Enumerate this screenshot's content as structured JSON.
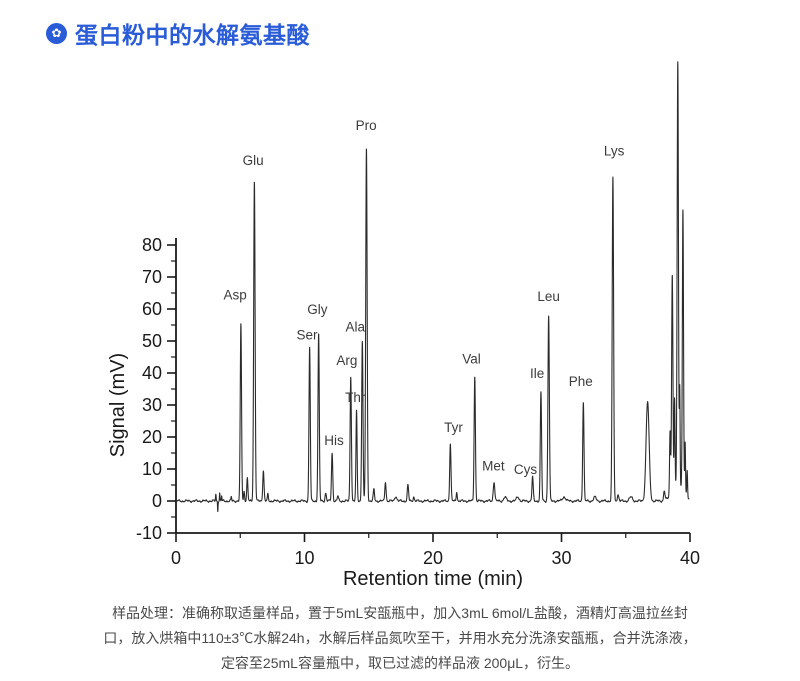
{
  "header": {
    "title": "蛋白粉中的水解氨基酸",
    "icon": "flower-badge",
    "icon_glyph": "✿",
    "accent_color": "#2A5CD8"
  },
  "chart_data": {
    "type": "line",
    "title": "",
    "xlabel": "Retention time (min)",
    "ylabel": "Signal (mV)",
    "xlim": [
      0,
      40
    ],
    "ylim": [
      -10,
      80
    ],
    "x_major_ticks": [
      0,
      10,
      20,
      30,
      40
    ],
    "x_minor_ticks": [
      5,
      15,
      25,
      35
    ],
    "y_major_ticks": [
      -10,
      0,
      10,
      20,
      30,
      40,
      50,
      60,
      70,
      80
    ],
    "y_minor_ticks": [
      -5,
      5,
      15,
      25,
      35,
      45,
      55,
      65,
      75
    ],
    "grid": false,
    "legend": "none",
    "line_color": "#2b2b2b",
    "axis_color": "#1a1a1a",
    "baseline_mv": 0,
    "peaks": [
      {
        "t": 3.1,
        "mv": 2.0,
        "w": 0.025,
        "label": ""
      },
      {
        "t": 3.25,
        "mv": -3.0,
        "w": 0.018,
        "label": ""
      },
      {
        "t": 3.4,
        "mv": 2.6,
        "w": 0.02,
        "label": ""
      },
      {
        "t": 3.55,
        "mv": 1.6,
        "w": 0.02,
        "label": ""
      },
      {
        "t": 4.3,
        "mv": 1.2,
        "w": 0.03,
        "label": ""
      },
      {
        "t": 5.05,
        "mv": 55,
        "w": 0.05,
        "label": "Asp"
      },
      {
        "t": 5.3,
        "mv": 3,
        "w": 0.04,
        "label": ""
      },
      {
        "t": 5.55,
        "mv": 7,
        "w": 0.045,
        "label": ""
      },
      {
        "t": 6.1,
        "mv": 100,
        "w": 0.055,
        "label": "Glu"
      },
      {
        "t": 6.8,
        "mv": 9.5,
        "w": 0.05,
        "label": ""
      },
      {
        "t": 7.15,
        "mv": 2,
        "w": 0.04,
        "label": ""
      },
      {
        "t": 10.4,
        "mv": 48,
        "w": 0.05,
        "label": "Ser"
      },
      {
        "t": 11.1,
        "mv": 52,
        "w": 0.05,
        "label": "Gly"
      },
      {
        "t": 11.65,
        "mv": 2.5,
        "w": 0.05,
        "label": ""
      },
      {
        "t": 12.15,
        "mv": 15,
        "w": 0.05,
        "label": "His"
      },
      {
        "t": 12.6,
        "mv": 1.5,
        "w": 0.05,
        "label": ""
      },
      {
        "t": 13.6,
        "mv": 39,
        "w": 0.05,
        "label": "Arg"
      },
      {
        "t": 14.05,
        "mv": 28,
        "w": 0.045,
        "label": "Thr"
      },
      {
        "t": 14.5,
        "mv": 50,
        "w": 0.05,
        "label": "Ala"
      },
      {
        "t": 14.82,
        "mv": 110,
        "w": 0.055,
        "label": "Pro"
      },
      {
        "t": 15.4,
        "mv": 3.5,
        "w": 0.05,
        "label": ""
      },
      {
        "t": 16.3,
        "mv": 6,
        "w": 0.05,
        "label": ""
      },
      {
        "t": 17.1,
        "mv": 1.5,
        "w": 0.08,
        "label": ""
      },
      {
        "t": 18.05,
        "mv": 5,
        "w": 0.05,
        "label": ""
      },
      {
        "t": 18.5,
        "mv": 1.3,
        "w": 0.05,
        "label": ""
      },
      {
        "t": 21.35,
        "mv": 18,
        "w": 0.05,
        "label": "Tyr"
      },
      {
        "t": 21.85,
        "mv": 3,
        "w": 0.04,
        "label": ""
      },
      {
        "t": 23.25,
        "mv": 39,
        "w": 0.05,
        "label": "Val"
      },
      {
        "t": 24.75,
        "mv": 6,
        "w": 0.06,
        "label": "Met"
      },
      {
        "t": 25.6,
        "mv": 1.2,
        "w": 0.1,
        "label": ""
      },
      {
        "t": 26.6,
        "mv": 1.3,
        "w": 0.1,
        "label": ""
      },
      {
        "t": 27.75,
        "mv": 7.5,
        "w": 0.05,
        "label": "Cys"
      },
      {
        "t": 28.4,
        "mv": 34,
        "w": 0.05,
        "label": "Ile"
      },
      {
        "t": 29.0,
        "mv": 58,
        "w": 0.055,
        "label": "Leu"
      },
      {
        "t": 30.2,
        "mv": 1.3,
        "w": 0.12,
        "label": ""
      },
      {
        "t": 31.7,
        "mv": 31,
        "w": 0.05,
        "label": "Phe"
      },
      {
        "t": 32.6,
        "mv": 1.2,
        "w": 0.1,
        "label": ""
      },
      {
        "t": 34.0,
        "mv": 101,
        "w": 0.055,
        "label": "Lys"
      },
      {
        "t": 34.4,
        "mv": 2,
        "w": 0.06,
        "label": ""
      },
      {
        "t": 35.4,
        "mv": 1.2,
        "w": 0.12,
        "label": ""
      },
      {
        "t": 36.7,
        "mv": 31,
        "w": 0.12,
        "label": ""
      },
      {
        "t": 38.0,
        "mv": 3,
        "w": 0.05,
        "label": ""
      },
      {
        "t": 38.45,
        "mv": 20,
        "w": 0.04,
        "label": ""
      },
      {
        "t": 38.62,
        "mv": 68,
        "w": 0.05,
        "label": ""
      },
      {
        "t": 38.8,
        "mv": 28,
        "w": 0.035,
        "label": ""
      },
      {
        "t": 39.05,
        "mv": 132.5,
        "w": 0.05,
        "label": ""
      },
      {
        "t": 39.2,
        "mv": 30,
        "w": 0.03,
        "label": ""
      },
      {
        "t": 39.45,
        "mv": 87,
        "w": 0.045,
        "label": ""
      },
      {
        "t": 39.62,
        "mv": 16,
        "w": 0.03,
        "label": ""
      },
      {
        "t": 39.78,
        "mv": 8,
        "w": 0.03,
        "label": ""
      },
      {
        "t": 39.1,
        "mv": 5,
        "w": 0.45,
        "label": ""
      }
    ],
    "peak_labels": [
      {
        "text": "Asp",
        "x": 4.6,
        "y": 63
      },
      {
        "text": "Glu",
        "x": 6.0,
        "y": 105
      },
      {
        "text": "Ser",
        "x": 10.2,
        "y": 50.5
      },
      {
        "text": "Gly",
        "x": 11.0,
        "y": 58.5
      },
      {
        "text": "His",
        "x": 12.3,
        "y": 17.5
      },
      {
        "text": "Arg",
        "x": 13.3,
        "y": 42.5
      },
      {
        "text": "Thr",
        "x": 13.95,
        "y": 31
      },
      {
        "text": "Ala",
        "x": 13.95,
        "y": 53
      },
      {
        "text": "Pro",
        "x": 14.8,
        "y": 116
      },
      {
        "text": "Tyr",
        "x": 21.6,
        "y": 21.5
      },
      {
        "text": "Val",
        "x": 23.0,
        "y": 43
      },
      {
        "text": "Met",
        "x": 24.7,
        "y": 9.5
      },
      {
        "text": "Cys",
        "x": 27.2,
        "y": 8.5
      },
      {
        "text": "Ile",
        "x": 28.1,
        "y": 38.5
      },
      {
        "text": "Leu",
        "x": 29.0,
        "y": 62.5
      },
      {
        "text": "Phe",
        "x": 31.5,
        "y": 36
      },
      {
        "text": "Lys",
        "x": 34.1,
        "y": 108
      }
    ]
  },
  "footer": {
    "lines": [
      "样品处理：准确称取适量样品，置于5mL安瓿瓶中，加入3mL 6mol/L盐酸，酒精灯高温拉丝封",
      "口，放入烘箱中110±3℃水解24h，水解后样品氮吹至干，并用水充分洗涤安瓿瓶，合并洗涤液，",
      "定容至25mL容量瓶中，取已过滤的样品液 200μL，衍生。"
    ]
  }
}
